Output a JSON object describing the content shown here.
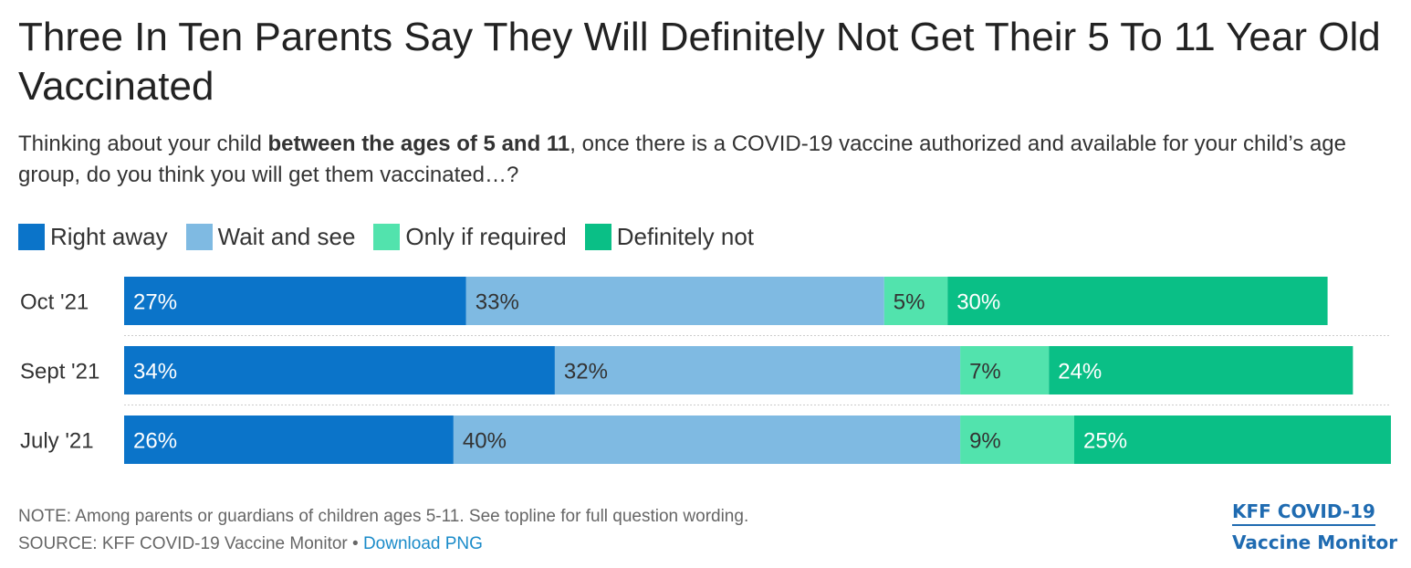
{
  "title": "Three In Ten Parents Say They Will Definitely Not Get Their 5 To 11 Year Old Vaccinated",
  "subtitle": {
    "before": "Thinking about your child ",
    "bold": "between the ages of 5 and 11",
    "after": ", once there is a COVID-19 vaccine authorized and available for your child’s age group, do you think you will get them vaccinated…?"
  },
  "legend": [
    {
      "label": "Right away",
      "color": "#0b74c9"
    },
    {
      "label": "Wait and see",
      "color": "#7fbae2"
    },
    {
      "label": "Only if required",
      "color": "#52e3ad"
    },
    {
      "label": "Definitely not",
      "color": "#0abf86"
    }
  ],
  "chart_data": {
    "type": "bar",
    "orientation": "horizontal",
    "stacked": true,
    "categories": [
      "Oct '21",
      "Sept '21",
      "July '21"
    ],
    "series": [
      {
        "name": "Right away",
        "values": [
          27,
          34,
          26
        ],
        "color": "#0b74c9",
        "label_color": "#ffffff"
      },
      {
        "name": "Wait and see",
        "values": [
          33,
          32,
          40
        ],
        "color": "#7fbae2",
        "label_color": "#333333"
      },
      {
        "name": "Only if required",
        "values": [
          5,
          7,
          9
        ],
        "color": "#52e3ad",
        "label_color": "#333333"
      },
      {
        "name": "Definitely not",
        "values": [
          30,
          24,
          25
        ],
        "color": "#0abf86",
        "label_color": "#ffffff"
      }
    ],
    "value_suffix": "%",
    "legend_position": "top-left",
    "grid": false
  },
  "footer": {
    "note": "NOTE: Among parents or guardians of children ages 5-11. See topline for full question wording.",
    "source_prefix": "SOURCE: KFF COVID-19 Vaccine Monitor • ",
    "download_link": "Download PNG"
  },
  "brand": {
    "line1": "KFF COVID-19",
    "line2": "Vaccine Monitor"
  }
}
